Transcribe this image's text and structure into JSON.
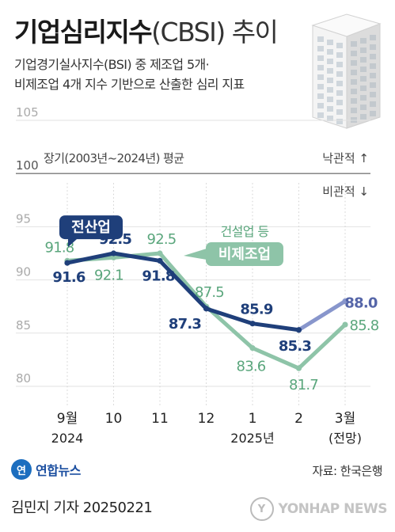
{
  "header": {
    "title_main": "기업심리지수",
    "title_paren": "(CBSI) 추이",
    "subtitle_line1": "기업경기실사지수(BSI) 중 제조업 5개·",
    "subtitle_line2": "비제조업 4개 지수 기반으로 산출한 심리 지표"
  },
  "footer": {
    "logo_mark": "연",
    "logo_text": "연합뉴스",
    "source": "자료: 한국은행",
    "reporter": "김민지 기자  20250221",
    "watermark_text": "YONHAP NEWS"
  },
  "chart_data": {
    "type": "line",
    "categories": [
      "9월",
      "10",
      "11",
      "12",
      "1",
      "2",
      "3월"
    ],
    "category_sublabels": [
      "2024",
      "",
      "",
      "",
      "2025년",
      "",
      "(전망)"
    ],
    "ylim": [
      80,
      105
    ],
    "yticks": [
      80,
      85,
      90,
      95,
      100,
      105
    ],
    "reference_line": {
      "value": 100,
      "label": "장기(2003년~2024년) 평균",
      "above_label": "낙관적 ↑",
      "below_label": "비관적 ↓"
    },
    "series": [
      {
        "name": "전산업",
        "values": [
          91.6,
          92.5,
          91.8,
          87.3,
          85.9,
          85.3,
          88.0
        ],
        "labels": [
          "91.6",
          "92.5",
          "91.8",
          "87.3",
          "85.9",
          "85.3",
          "88.0"
        ],
        "color": "#1f3f7a",
        "forecast_color": "#8896cc"
      },
      {
        "name": "비제조업",
        "name_prefix": "건설업 등",
        "values": [
          91.8,
          92.1,
          92.5,
          87.5,
          83.6,
          81.7,
          85.8
        ],
        "labels": [
          "91.8",
          "92.1",
          "92.5",
          "87.5",
          "83.6",
          "81.7",
          "85.8"
        ],
        "color": "#8ec4a8",
        "label_color": "#5aa67c",
        "forecast_color": "#8ec4a8"
      }
    ]
  }
}
